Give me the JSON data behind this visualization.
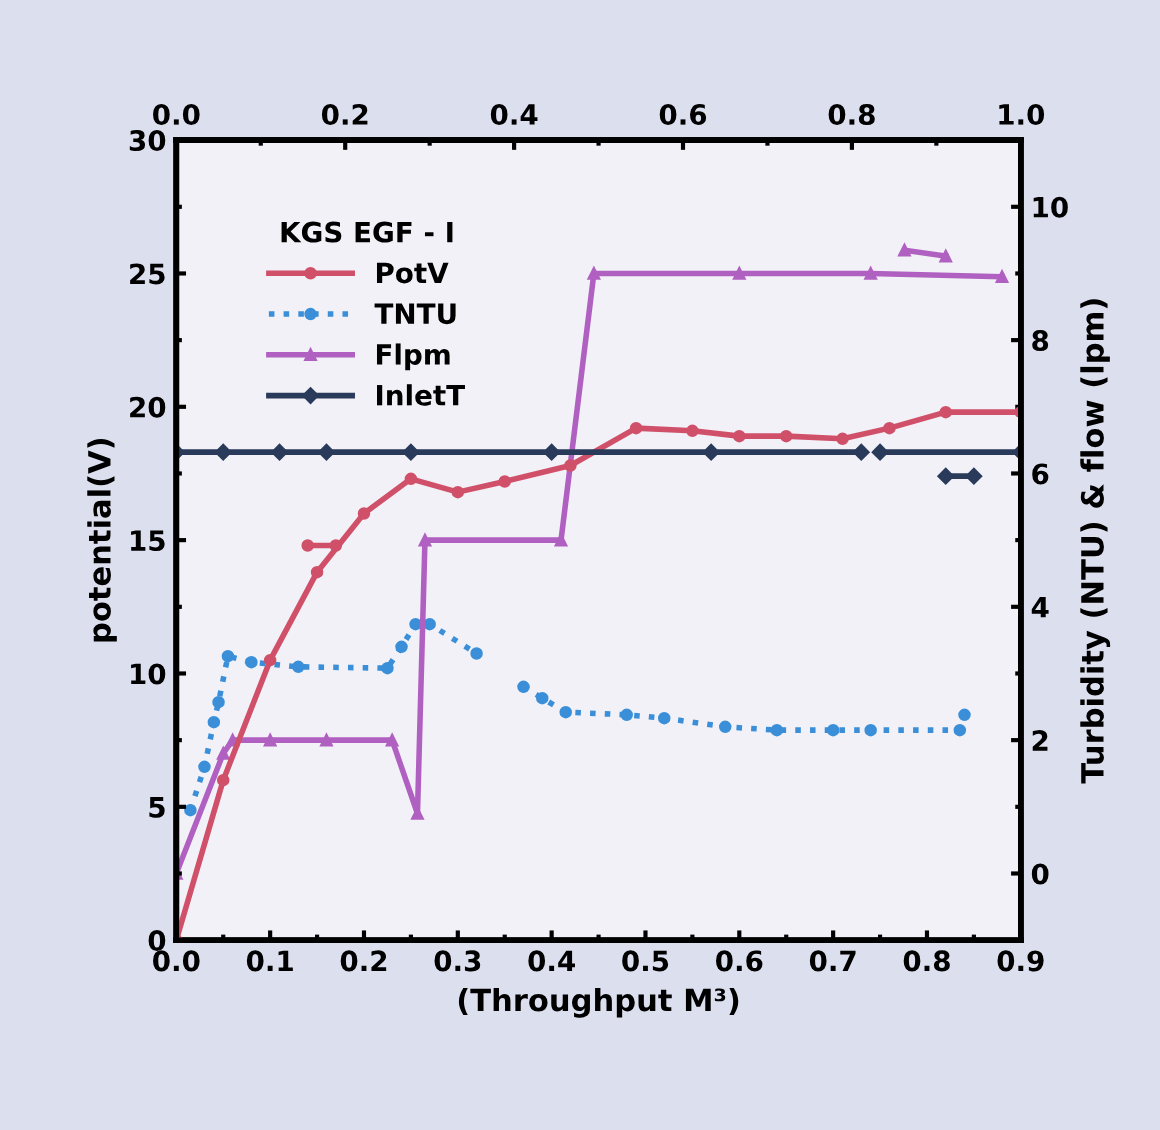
{
  "chart_data": {
    "type": "line",
    "legend_title": "KGS EGF - I",
    "xlabel": "(Throughput M³)",
    "ylabel": "potential(V)",
    "y2label": "Turbidity (NTU) & flow (lpm)",
    "xlim": [
      0,
      0.9
    ],
    "xticks": [
      {
        "value": 0,
        "label": "0.0"
      },
      0.1,
      0.2,
      0.3,
      0.4,
      0.5,
      0.6,
      0.7,
      0.8,
      0.9
    ],
    "x2lim": [
      0,
      1.0
    ],
    "x2ticks": [
      {
        "value": 0,
        "label": "0.0"
      },
      0.2,
      0.4,
      0.6,
      0.8,
      {
        "value": 1.0,
        "label": "1.0"
      }
    ],
    "ylim": [
      0,
      30
    ],
    "yticks": [
      0,
      5,
      10,
      15,
      20,
      25,
      30
    ],
    "y2lim": [
      -1,
      11
    ],
    "y2ticks": [
      0,
      2,
      4,
      6,
      8,
      10
    ],
    "grid": false,
    "legend": "top left",
    "series": [
      {
        "name": "PotV",
        "color": "#d0506a",
        "marker": "circle",
        "line_style": "solid",
        "x": [
          0,
          0.05,
          0.1,
          0.15,
          0.2,
          0.25,
          0.3,
          0.35,
          0.42,
          0.49,
          0.55,
          0.6,
          0.65,
          0.71,
          0.76,
          0.82,
          0.9,
          null,
          0.14,
          0.17
        ],
        "values": [
          0,
          6,
          10.5,
          13.8,
          16,
          17.3,
          16.8,
          17.2,
          17.8,
          19.2,
          19.1,
          18.9,
          18.9,
          18.8,
          19.2,
          19.8,
          19.8,
          null,
          14.8,
          14.8
        ]
      },
      {
        "name": "TNTU",
        "color": "#3a8fd8",
        "marker": "circle",
        "line_style": "dotted",
        "axis": "y2",
        "x": [
          0.015,
          0.03,
          0.04,
          0.045,
          0.055,
          0.08,
          0.13,
          0.225,
          0.24,
          0.255,
          0.27,
          0.32,
          null,
          0.37,
          0.39,
          0.415,
          0.48,
          0.52,
          0.585,
          0.64,
          0.7,
          0.74,
          0.835,
          0.84
        ],
        "values": [
          0.95,
          1.6,
          2.27,
          2.57,
          3.26,
          3.17,
          3.1,
          3.08,
          3.4,
          3.74,
          3.74,
          3.3,
          null,
          2.8,
          2.63,
          2.42,
          2.38,
          2.33,
          2.2,
          2.15,
          2.15,
          2.15,
          2.15,
          2.38
        ]
      },
      {
        "name": "Flpm",
        "color": "#b060c0",
        "marker": "triangle",
        "line_style": "solid",
        "axis": "y2",
        "x": [
          0,
          0.05,
          0.06,
          0.1,
          0.16,
          0.23,
          0.257,
          0.265,
          0.41,
          0.445,
          0.6,
          0.74,
          0.88,
          null,
          0.776,
          0.82
        ],
        "values": [
          0,
          1.8,
          2,
          2,
          2,
          2,
          0.9,
          5,
          5,
          9,
          9,
          9,
          8.95,
          null,
          9.35,
          9.26
        ]
      },
      {
        "name": "InletT",
        "color": "#2a3a5a",
        "marker": "diamond",
        "line_style": "solid",
        "x": [
          0,
          0.05,
          0.11,
          0.16,
          0.25,
          0.4,
          0.57,
          0.73,
          null,
          0.75,
          0.9,
          null,
          0.82,
          0.85
        ],
        "values": [
          18.3,
          18.3,
          18.3,
          18.3,
          18.3,
          18.3,
          18.3,
          18.3,
          null,
          18.3,
          18.3,
          null,
          17.4,
          17.4
        ]
      }
    ]
  }
}
